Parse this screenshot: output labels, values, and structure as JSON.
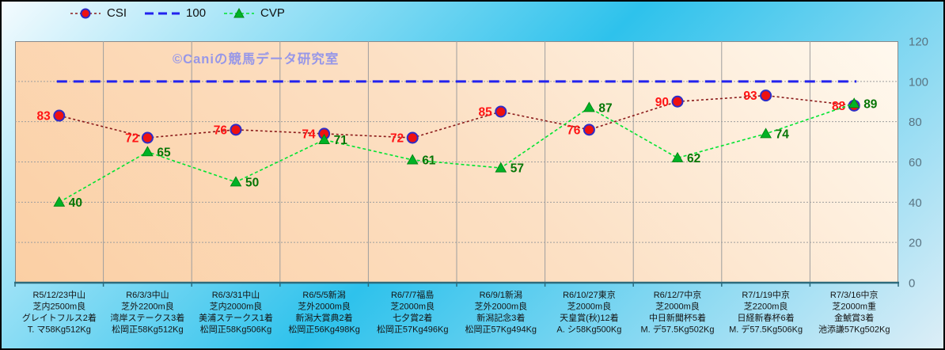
{
  "watermark": "©Caniの競馬データ研究室",
  "legend": {
    "items": [
      {
        "label": "CSI"
      },
      {
        "label": "100"
      },
      {
        "label": "CVP"
      }
    ]
  },
  "chart_data": {
    "type": "line",
    "title": "",
    "xlabel": "",
    "ylabel": "",
    "ylim": [
      0,
      120
    ],
    "yticks": [
      0,
      20,
      40,
      60,
      80,
      100,
      120
    ],
    "grid": true,
    "legend_position": "top-left",
    "categories": [
      {
        "lines": [
          "R5/12/23中山",
          "芝内2500m良",
          "グレイトフルス2着",
          "T. マ58Kg512Kg"
        ]
      },
      {
        "lines": [
          "R6/3/3中山",
          "芝外2200m良",
          "湾岸ステークス3着",
          "松岡正58Kg512Kg"
        ]
      },
      {
        "lines": [
          "R6/3/31中山",
          "芝内2000m良",
          "美浦ステークス1着",
          "松岡正58Kg506Kg"
        ]
      },
      {
        "lines": [
          "R6/5/5新潟",
          "芝外2000m良",
          "新潟大賞典2着",
          "松岡正56Kg498Kg"
        ]
      },
      {
        "lines": [
          "R6/7/7福島",
          "芝2000m良",
          "七夕賞2着",
          "松岡正57Kg496Kg"
        ]
      },
      {
        "lines": [
          "R6/9/1新潟",
          "芝外2000m良",
          "新潟記念3着",
          "松岡正57Kg494Kg"
        ]
      },
      {
        "lines": [
          "R6/10/27東京",
          "芝2000m良",
          "天皇賞(秋)12着",
          "A. シ58Kg500Kg"
        ]
      },
      {
        "lines": [
          "R6/12/7中京",
          "芝2000m良",
          "中日新聞杯5着",
          "M. デ57.5Kg502Kg"
        ]
      },
      {
        "lines": [
          "R7/1/19中京",
          "芝2200m良",
          "日経新春杯6着",
          "M. デ57.5Kg506Kg"
        ]
      },
      {
        "lines": [
          "R7/3/16中京",
          "芝2000m重",
          "金鯱賞3着",
          "池添謙57Kg502Kg"
        ]
      }
    ],
    "series": [
      {
        "name": "CSI",
        "type": "line",
        "marker": "circle",
        "values": [
          83,
          72,
          76,
          74,
          72,
          85,
          76,
          90,
          93,
          88
        ],
        "line_color": "#8b1a1a",
        "marker_fill": "#ee1111",
        "marker_edge": "#2d2dc8",
        "label_color": "#ff1414",
        "label_side": "left"
      },
      {
        "name": "100",
        "type": "reference",
        "value": 100,
        "line_color": "#2222ee"
      },
      {
        "name": "CVP",
        "type": "line",
        "marker": "triangle",
        "values": [
          40,
          65,
          50,
          71,
          61,
          57,
          87,
          62,
          74,
          89
        ],
        "line_color": "#00e431",
        "marker_fill": "#00b226",
        "marker_edge": "#008a12",
        "label_color": "#067606",
        "label_side": "right"
      }
    ],
    "style": {
      "outer_bg_gradient": [
        "#f4fbfe",
        "#2ec2ec",
        "#ddeef7"
      ],
      "plot_bg_gradient": [
        "#fbcfa4",
        "#fce0c4",
        "#fff9ef"
      ],
      "grid_color": "#9e9e9e",
      "plot_border_color": "#8a8a8a",
      "axis_color": "#2d6b7c",
      "ytick_color": "#5a7482",
      "xlabel_color": "#141414",
      "watermark_color": "#9797e8"
    }
  }
}
